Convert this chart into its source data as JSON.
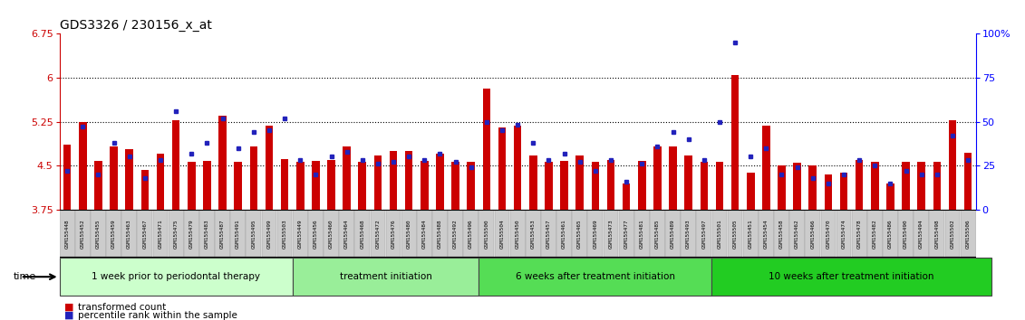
{
  "title": "GDS3326 / 230156_x_at",
  "ylim": [
    3.75,
    6.75
  ],
  "yticks": [
    3.75,
    4.5,
    5.25,
    6.0,
    6.75
  ],
  "ytick_labels": [
    "3.75",
    "4.5",
    "5.25",
    "6",
    "6.75"
  ],
  "right_yticks": [
    0,
    25,
    50,
    75,
    100
  ],
  "right_ytick_labels": [
    "0",
    "25",
    "50",
    "75",
    "100%"
  ],
  "dotted_lines": [
    4.5,
    5.25,
    6.0
  ],
  "bar_color": "#CC0000",
  "dot_color": "#2222BB",
  "bg_color": "#FFFFFF",
  "groups": [
    {
      "label": "1 week prior to periodontal therapy",
      "color": "#CCFFCC",
      "start": 0,
      "end": 15
    },
    {
      "label": "treatment initiation",
      "color": "#99EE99",
      "start": 15,
      "end": 27
    },
    {
      "label": "6 weeks after treatment initiation",
      "color": "#55DD55",
      "start": 27,
      "end": 42
    },
    {
      "label": "10 weeks after treatment initiation",
      "color": "#22CC22",
      "start": 42,
      "end": 60
    }
  ],
  "samples": [
    {
      "id": "GSM155448",
      "val": 4.85,
      "pct": 22
    },
    {
      "id": "GSM155452",
      "val": 5.24,
      "pct": 47
    },
    {
      "id": "GSM155455",
      "val": 4.58,
      "pct": 20
    },
    {
      "id": "GSM155459",
      "val": 4.83,
      "pct": 38
    },
    {
      "id": "GSM155463",
      "val": 4.78,
      "pct": 30
    },
    {
      "id": "GSM155467",
      "val": 4.42,
      "pct": 18
    },
    {
      "id": "GSM155471",
      "val": 4.7,
      "pct": 28
    },
    {
      "id": "GSM155475",
      "val": 5.27,
      "pct": 56
    },
    {
      "id": "GSM155479",
      "val": 4.57,
      "pct": 32
    },
    {
      "id": "GSM155483",
      "val": 4.58,
      "pct": 38
    },
    {
      "id": "GSM155487",
      "val": 5.35,
      "pct": 52
    },
    {
      "id": "GSM155491",
      "val": 4.57,
      "pct": 35
    },
    {
      "id": "GSM155495",
      "val": 4.83,
      "pct": 44
    },
    {
      "id": "GSM155499",
      "val": 5.18,
      "pct": 45
    },
    {
      "id": "GSM155503",
      "val": 4.61,
      "pct": 52
    },
    {
      "id": "GSM155449",
      "val": 4.57,
      "pct": 28
    },
    {
      "id": "GSM155456",
      "val": 4.58,
      "pct": 20
    },
    {
      "id": "GSM155460",
      "val": 4.6,
      "pct": 30
    },
    {
      "id": "GSM155464",
      "val": 4.83,
      "pct": 33
    },
    {
      "id": "GSM155468",
      "val": 4.57,
      "pct": 28
    },
    {
      "id": "GSM155472",
      "val": 4.68,
      "pct": 26
    },
    {
      "id": "GSM155476",
      "val": 4.75,
      "pct": 27
    },
    {
      "id": "GSM155480",
      "val": 4.75,
      "pct": 30
    },
    {
      "id": "GSM155484",
      "val": 4.58,
      "pct": 28
    },
    {
      "id": "GSM155488",
      "val": 4.71,
      "pct": 32
    },
    {
      "id": "GSM155492",
      "val": 4.57,
      "pct": 27
    },
    {
      "id": "GSM155496",
      "val": 4.57,
      "pct": 24
    },
    {
      "id": "GSM155500",
      "val": 5.82,
      "pct": 50
    },
    {
      "id": "GSM155504",
      "val": 5.15,
      "pct": 45
    },
    {
      "id": "GSM155450",
      "val": 5.18,
      "pct": 48
    },
    {
      "id": "GSM155453",
      "val": 4.67,
      "pct": 38
    },
    {
      "id": "GSM155457",
      "val": 4.57,
      "pct": 28
    },
    {
      "id": "GSM155461",
      "val": 4.58,
      "pct": 32
    },
    {
      "id": "GSM155465",
      "val": 4.68,
      "pct": 27
    },
    {
      "id": "GSM155469",
      "val": 4.57,
      "pct": 22
    },
    {
      "id": "GSM155473",
      "val": 4.6,
      "pct": 28
    },
    {
      "id": "GSM155477",
      "val": 4.2,
      "pct": 16
    },
    {
      "id": "GSM155481",
      "val": 4.58,
      "pct": 26
    },
    {
      "id": "GSM155485",
      "val": 4.83,
      "pct": 36
    },
    {
      "id": "GSM155489",
      "val": 4.83,
      "pct": 44
    },
    {
      "id": "GSM155493",
      "val": 4.68,
      "pct": 40
    },
    {
      "id": "GSM155497",
      "val": 4.57,
      "pct": 28
    },
    {
      "id": "GSM155501",
      "val": 4.57,
      "pct": 50
    },
    {
      "id": "GSM155505",
      "val": 6.05,
      "pct": 95
    },
    {
      "id": "GSM155451",
      "val": 4.38,
      "pct": 30
    },
    {
      "id": "GSM155454",
      "val": 5.18,
      "pct": 35
    },
    {
      "id": "GSM155458",
      "val": 4.5,
      "pct": 20
    },
    {
      "id": "GSM155462",
      "val": 4.55,
      "pct": 24
    },
    {
      "id": "GSM155466",
      "val": 4.5,
      "pct": 18
    },
    {
      "id": "GSM155470",
      "val": 4.35,
      "pct": 15
    },
    {
      "id": "GSM155474",
      "val": 4.38,
      "pct": 20
    },
    {
      "id": "GSM155478",
      "val": 4.6,
      "pct": 28
    },
    {
      "id": "GSM155482",
      "val": 4.57,
      "pct": 25
    },
    {
      "id": "GSM155486",
      "val": 4.2,
      "pct": 15
    },
    {
      "id": "GSM155490",
      "val": 4.57,
      "pct": 22
    },
    {
      "id": "GSM155494",
      "val": 4.57,
      "pct": 20
    },
    {
      "id": "GSM155498",
      "val": 4.57,
      "pct": 20
    },
    {
      "id": "GSM155502",
      "val": 5.27,
      "pct": 42
    },
    {
      "id": "GSM155506",
      "val": 4.72,
      "pct": 28
    }
  ],
  "legend_items": [
    {
      "color": "#CC0000",
      "label": "transformed count"
    },
    {
      "color": "#2222BB",
      "label": "percentile rank within the sample"
    }
  ]
}
